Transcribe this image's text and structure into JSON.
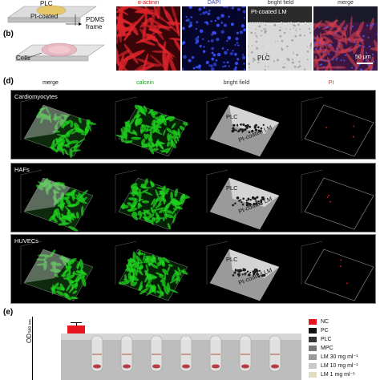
{
  "panel_labels": {
    "b": "(b)",
    "d": "(d)",
    "e": "(e)"
  },
  "schematic": {
    "plc": "PLC",
    "pt_coated": "Pt-coated",
    "pdms_line1": "PDMS",
    "pdms_line2": "frame",
    "cells": "Cells"
  },
  "micrographs": {
    "headers": [
      "α-actinin",
      "DAPI",
      "bright field",
      "merge"
    ],
    "pt_coated_lm": "Pt-coated LM",
    "plc": "PLC",
    "scale_bar": "50 μm"
  },
  "panel_d": {
    "col_headers": [
      "merge",
      "calcein",
      "bright field",
      "PI"
    ],
    "row_titles": [
      "Cardiomyocytes",
      "HAFs",
      "HUVECs"
    ],
    "overlay_plc": "PLC",
    "overlay_pt": "Pt-coated LM",
    "colors": {
      "calcein": "#1fd21f",
      "pi": "#e01a1a",
      "header_calcein": "#1aa31a",
      "header_pi": "#c0392b"
    }
  },
  "panel_e": {
    "ylabel": "OD",
    "ylabel_sub": "540 nm",
    "legend": [
      {
        "label": "NC",
        "color": "#e8141e"
      },
      {
        "label": "PC",
        "color": "#111111"
      },
      {
        "label": "PLC",
        "color": "#333333"
      },
      {
        "label": "MPC",
        "color": "#777777"
      },
      {
        "label": "LM  30 mg ml⁻¹",
        "color": "#9a9a9a"
      },
      {
        "label": "LM  10 mg ml⁻¹",
        "color": "#c8c8c8"
      },
      {
        "label": "LM    1 mg ml⁻¹",
        "color": "#e2dcc4"
      }
    ]
  }
}
